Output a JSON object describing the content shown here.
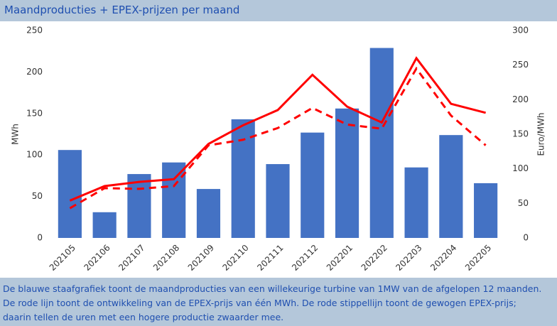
{
  "header": {
    "title": "Maandproducties + EPEX-prijzen per maand"
  },
  "chart_data": {
    "type": "bar-line",
    "categories": [
      "202105",
      "202106",
      "202107",
      "202108",
      "202109",
      "202110",
      "202111",
      "202112",
      "202201",
      "202202",
      "202203",
      "202204",
      "202205"
    ],
    "values": [
      106,
      31,
      77,
      91,
      59,
      143,
      89,
      127,
      156,
      229,
      85,
      124,
      66
    ],
    "color": "#4472c4",
    "series": [
      {
        "color": "#ff0000",
        "dashed": false,
        "axis": "y2",
        "values": [
          54,
          75,
          81,
          85,
          136,
          163,
          185,
          236,
          190,
          167,
          260,
          194,
          181
        ]
      },
      {
        "color": "#ff0000",
        "dashed": true,
        "axis": "y2",
        "values": [
          43,
          72,
          71,
          75,
          134,
          142,
          159,
          188,
          164,
          158,
          245,
          177,
          134
        ]
      }
    ],
    "ylabel": "MWh",
    "y2label": "Euro/MWh",
    "ylim": [
      0,
      250
    ],
    "yticks": [
      0,
      50,
      100,
      150,
      200,
      250
    ],
    "y2lim": [
      0,
      300
    ],
    "y2ticks": [
      0,
      50,
      100,
      150,
      200,
      250,
      300
    ]
  },
  "caption": [
    "De blauwe staafgrafiek toont de maandproducties van een willekeurige turbine van 1MW van de afgelopen 12 maanden.",
    "De rode lijn toont de ontwikkeling van de EPEX-prijs van één MWh. De rode stippellijn toont de gewogen EPEX-prijs;",
    "daarin tellen de uren met een hogere productie zwaarder mee."
  ]
}
